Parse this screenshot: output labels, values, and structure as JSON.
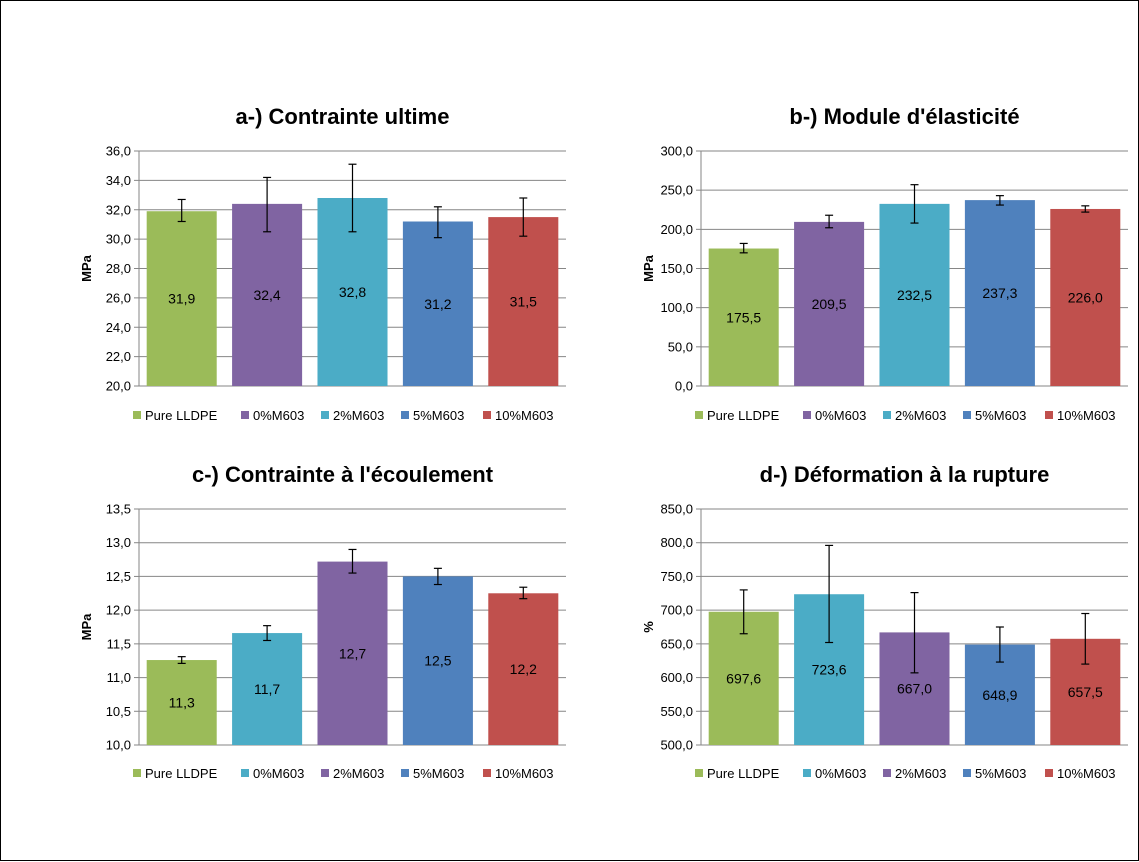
{
  "chart_data": [
    {
      "type": "bar",
      "title": "a-) Contrainte ultime",
      "ylabel": "MPa",
      "ylim": [
        20.0,
        36.0
      ],
      "ystep": 2.0,
      "categories": [
        "Pure LLDPE",
        "0%M603",
        "2%M603",
        "5%M603",
        "10%M603"
      ],
      "values": [
        31.9,
        32.4,
        32.8,
        31.2,
        31.5
      ],
      "value_labels": [
        "31,9",
        "32,4",
        "32,8",
        "31,2",
        "31,5"
      ],
      "error_low": [
        31.2,
        30.5,
        30.5,
        30.1,
        30.2
      ],
      "error_high": [
        32.7,
        34.2,
        35.1,
        32.2,
        32.8
      ],
      "colors": [
        "#9BBB59",
        "#8064A2",
        "#4BACC6",
        "#4F81BD",
        "#C0504D"
      ],
      "grid": true,
      "legend": "bottom"
    },
    {
      "type": "bar",
      "title": "b-) Module d'élasticité",
      "ylabel": "MPa",
      "ylim": [
        0.0,
        300.0
      ],
      "ystep": 50.0,
      "categories": [
        "Pure LLDPE",
        "0%M603",
        "2%M603",
        "5%M603",
        "10%M603"
      ],
      "values": [
        175.5,
        209.5,
        232.5,
        237.3,
        226.0
      ],
      "value_labels": [
        "175,5",
        "209,5",
        "232,5",
        "237,3",
        "226,0"
      ],
      "error_low": [
        170.0,
        202.0,
        208.0,
        231.0,
        222.0
      ],
      "error_high": [
        182.0,
        218.0,
        257.0,
        243.0,
        230.0
      ],
      "colors": [
        "#9BBB59",
        "#8064A2",
        "#4BACC6",
        "#4F81BD",
        "#C0504D"
      ],
      "grid": true,
      "legend": "bottom"
    },
    {
      "type": "bar",
      "title": "c-) Contrainte à l'écoulement",
      "ylabel": "MPa",
      "ylim": [
        10.0,
        13.5
      ],
      "ystep": 0.5,
      "categories": [
        "Pure LLDPE",
        "0%M603",
        "2%M603",
        "5%M603",
        "10%M603"
      ],
      "values": [
        11.26,
        11.66,
        12.72,
        12.5,
        12.25
      ],
      "value_labels": [
        "11,3",
        "11,7",
        "12,7",
        "12,5",
        "12,2"
      ],
      "error_low": [
        11.21,
        11.55,
        12.55,
        12.38,
        12.17
      ],
      "error_high": [
        11.31,
        11.77,
        12.9,
        12.62,
        12.34
      ],
      "colors": [
        "#9BBB59",
        "#4BACC6",
        "#8064A2",
        "#4F81BD",
        "#C0504D"
      ],
      "grid": true,
      "legend": "bottom"
    },
    {
      "type": "bar",
      "title": "d-) Déformation à la rupture",
      "ylabel": "%",
      "ylim": [
        500.0,
        850.0
      ],
      "ystep": 50.0,
      "categories": [
        "Pure LLDPE",
        "0%M603",
        "2%M603",
        "5%M603",
        "10%M603"
      ],
      "values": [
        697.6,
        723.6,
        667.0,
        648.9,
        657.5
      ],
      "value_labels": [
        "697,6",
        "723,6",
        "667,0",
        "648,9",
        "657,5"
      ],
      "error_low": [
        665.0,
        652.0,
        607.0,
        623.0,
        620.0
      ],
      "error_high": [
        730.0,
        796.0,
        726.0,
        675.0,
        695.0
      ],
      "colors": [
        "#9BBB59",
        "#4BACC6",
        "#8064A2",
        "#4F81BD",
        "#C0504D"
      ],
      "grid": true,
      "legend": "bottom"
    }
  ]
}
